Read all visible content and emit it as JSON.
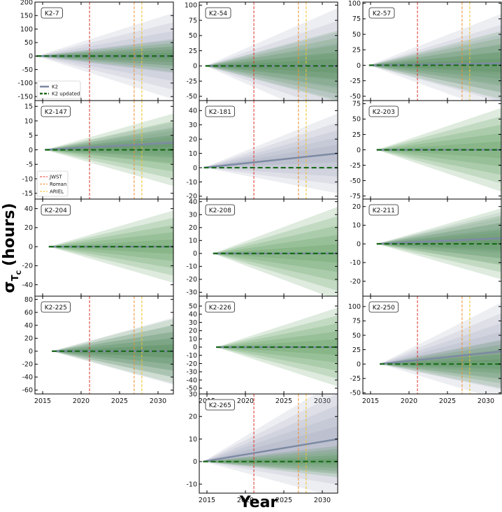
{
  "chart_data": {
    "type": "area",
    "xlabel": "Year",
    "ylabel_symbol": "σ",
    "ylabel_subscript": "T",
    "ylabel_subsubscript": "C",
    "ylabel_unit": "(hours)",
    "xlim": [
      2014,
      2032
    ],
    "xticks": [
      2015,
      2020,
      2025,
      2030
    ],
    "legend_lines": [
      {
        "name": "K2",
        "color": "#7d8aa3",
        "style": "solid"
      },
      {
        "name": "K2 updated",
        "color": "#1a6b1a",
        "style": "dashed"
      }
    ],
    "legend_missions": [
      {
        "name": "JWST",
        "color": "#e0342a"
      },
      {
        "name": "Roman",
        "color": "#ef8f2e"
      },
      {
        "name": "ARIEL",
        "color": "#f0c22a"
      }
    ],
    "missions": [
      {
        "name": "JWST",
        "year": 2021.1,
        "color": "#e0342a"
      },
      {
        "name": "Roman",
        "year": 2026.9,
        "color": "#ef8f2e"
      },
      {
        "name": "ARIEL",
        "year": 2027.9,
        "color": "#f0c22a"
      }
    ],
    "panels": [
      {
        "name": "K2-7",
        "ylim": [
          -165,
          200
        ],
        "yticks": [
          -150,
          -100,
          -50,
          0,
          50,
          100,
          150,
          200
        ],
        "start": 2014.2,
        "blue_max": 160,
        "blue_trend": 0,
        "green_max": 60,
        "show_missions": true,
        "legend": "lines"
      },
      {
        "name": "K2-54",
        "ylim": [
          -57,
          105
        ],
        "yticks": [
          -50,
          -25,
          0,
          25,
          50,
          75,
          100
        ],
        "start": 2014.8,
        "blue_max": 95,
        "blue_trend": 0,
        "green_max": 58,
        "show_missions": true
      },
      {
        "name": "K2-57",
        "ylim": [
          -57,
          102
        ],
        "yticks": [
          -50,
          -25,
          0,
          25,
          50,
          75,
          100
        ],
        "start": 2014.8,
        "blue_max": 80,
        "blue_trend": 3,
        "green_max": 55,
        "show_missions": true
      },
      {
        "name": "K2-147",
        "ylim": [
          -17,
          17
        ],
        "yticks": [
          -15,
          -10,
          -5,
          0,
          5,
          10,
          15
        ],
        "start": 2015.3,
        "blue_max": 7,
        "blue_trend": 2.5,
        "green_max": 12.5,
        "show_missions": true,
        "legend": "missions"
      },
      {
        "name": "K2-181",
        "ylim": [
          -22,
          47
        ],
        "yticks": [
          -20,
          -10,
          0,
          10,
          20,
          30,
          40
        ],
        "start": 2014.6,
        "blue_max": 28,
        "blue_trend": 10,
        "green_max": 0,
        "show_missions": true
      },
      {
        "name": "K2-203",
        "ylim": [
          -80,
          80
        ],
        "yticks": [
          -75,
          -50,
          -25,
          0,
          25,
          50,
          75
        ],
        "start": 2015.8,
        "blue_max": 0,
        "blue_trend": 0,
        "green_max": 68,
        "show_missions": false
      },
      {
        "name": "K2-204",
        "ylim": [
          -52,
          50
        ],
        "yticks": [
          -40,
          -20,
          0,
          20,
          40
        ],
        "start": 2015.8,
        "blue_max": 0,
        "blue_trend": 0,
        "green_max": 38,
        "show_missions": false
      },
      {
        "name": "K2-208",
        "ylim": [
          -33,
          42
        ],
        "yticks": [
          -30,
          -20,
          -10,
          0,
          10,
          20,
          30,
          40
        ],
        "start": 2015.8,
        "blue_max": 0,
        "blue_trend": 0,
        "green_max": 36,
        "show_missions": false
      },
      {
        "name": "K2-211",
        "ylim": [
          -28,
          24
        ],
        "yticks": [
          -20,
          -10,
          0,
          10,
          20
        ],
        "start": 2015.8,
        "blue_max": 14,
        "blue_trend": 3,
        "green_max": 19,
        "show_missions": false
      },
      {
        "name": "K2-225",
        "ylim": [
          -66,
          85
        ],
        "yticks": [
          -60,
          -40,
          -20,
          0,
          20,
          40,
          60,
          80
        ],
        "start": 2016.2,
        "blue_max": 52,
        "blue_trend": 0,
        "green_max": 50,
        "show_missions": true
      },
      {
        "name": "K2-226",
        "ylim": [
          -57,
          62
        ],
        "yticks": [
          -50,
          -40,
          -30,
          -20,
          -10,
          0,
          10,
          20,
          30,
          40,
          50
        ],
        "start": 2016.2,
        "blue_max": 0,
        "blue_trend": 0,
        "green_max": 48,
        "show_missions": false
      },
      {
        "name": "K2-250",
        "ylim": [
          -52,
          118
        ],
        "yticks": [
          -50,
          -25,
          0,
          25,
          50,
          75,
          100
        ],
        "start": 2016.2,
        "blue_max": 85,
        "blue_trend": 22,
        "green_max": 42,
        "show_missions": true
      },
      {
        "name": "K2-265",
        "ylim": [
          -14,
          30
        ],
        "yticks": [
          -10,
          0,
          10,
          20,
          30
        ],
        "start": 2014.5,
        "blue_max": 26,
        "blue_trend": 10,
        "green_max": 7,
        "show_missions": true
      }
    ]
  }
}
